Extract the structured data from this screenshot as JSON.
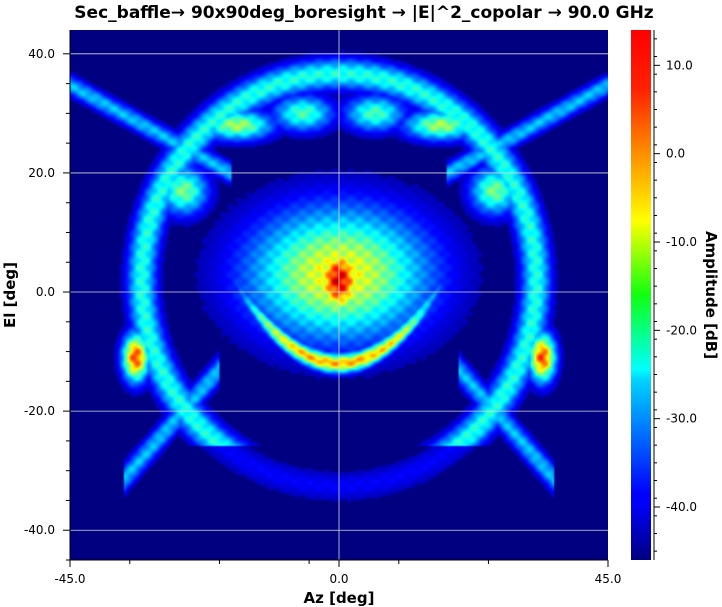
{
  "chart_data": {
    "type": "heatmap",
    "title": "Sec_baffle→ 90x90deg_boresight → |E|^2_copolar → 90.0 GHz",
    "xlabel": "Az [deg]",
    "ylabel": "El [deg]",
    "colorbar_label": "Amplitude [dB]",
    "xlim": [
      -45.0,
      45.0
    ],
    "ylim": [
      -45.0,
      44.0
    ],
    "zlim": [
      -46.0,
      14.0
    ],
    "xticks": [
      -45.0,
      0.0,
      45.0
    ],
    "xtick_labels": [
      "-45.0",
      "0.0",
      "45.0"
    ],
    "yticks": [
      40.0,
      20.0,
      0.0,
      -20.0,
      -40.0
    ],
    "ytick_labels": [
      "40.0",
      "20.0",
      "0.0",
      "-20.0",
      "-40.0"
    ],
    "cticks": [
      10.0,
      0.0,
      -10.0,
      -20.0,
      -30.0,
      -40.0
    ],
    "ctick_labels": [
      "10.0",
      "0.0",
      "-10.0",
      "-20.0",
      "-30.0",
      "-40.0"
    ],
    "grid": true,
    "colormap": "jet",
    "colors": {
      "background": "#00007f",
      "grid": "#d8d8d8"
    },
    "features": [
      {
        "name": "main lobe",
        "az": 0.0,
        "el": 2.0,
        "peak_db": 12.0
      },
      {
        "name": "lower arc",
        "az_range": [
          -13.0,
          13.0
        ],
        "el_center": -6.0,
        "peak_db": 2.0
      },
      {
        "name": "left side lobe",
        "az": -34.0,
        "el": -11.0,
        "peak_db": 10.0
      },
      {
        "name": "right side lobe",
        "az": 34.0,
        "el": -11.0,
        "peak_db": 10.0
      },
      {
        "name": "upper left lobe",
        "az": -17.0,
        "el": 28.0,
        "peak_db": -2.0
      },
      {
        "name": "upper right lobe",
        "az": 17.0,
        "el": 28.0,
        "peak_db": -2.0
      }
    ]
  }
}
